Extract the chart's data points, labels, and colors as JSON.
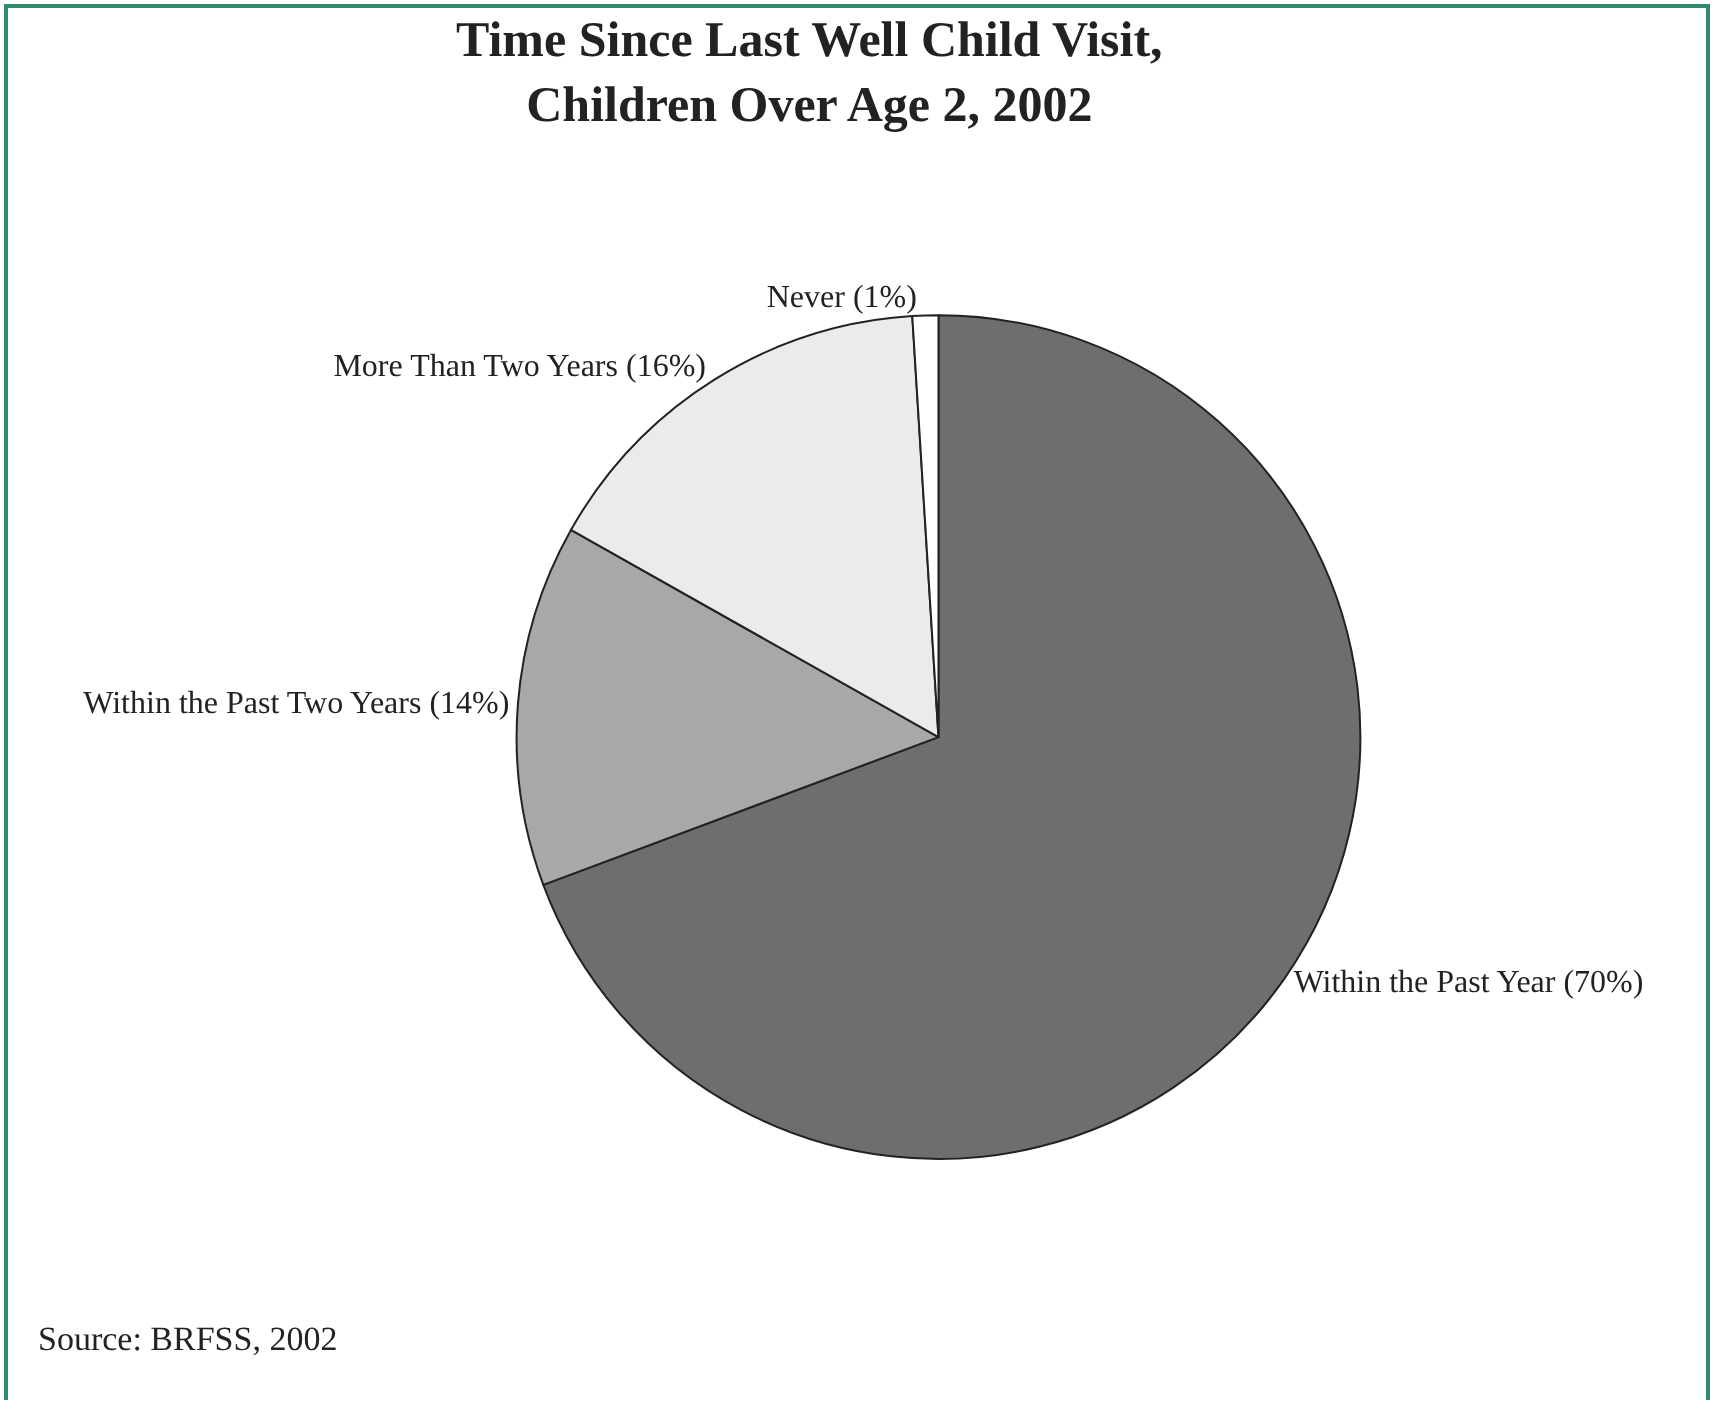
{
  "chart_data": {
    "type": "pie",
    "title": "Time Since Last Well Child Visit,\nChildren Over Age 2, 2002",
    "categories": [
      "Within the Past Year (70%)",
      "Within the Past Two Years (14%)",
      "More Than Two Years (16%)",
      "Never (1%)"
    ],
    "values": [
      70,
      14,
      16,
      1
    ],
    "colors": [
      "#6d6e70",
      "#a7a8aa",
      "#ebebeb",
      "#ffffff"
    ],
    "legend": false,
    "annotations": [
      "Source: BRFSS, 2002"
    ]
  }
}
